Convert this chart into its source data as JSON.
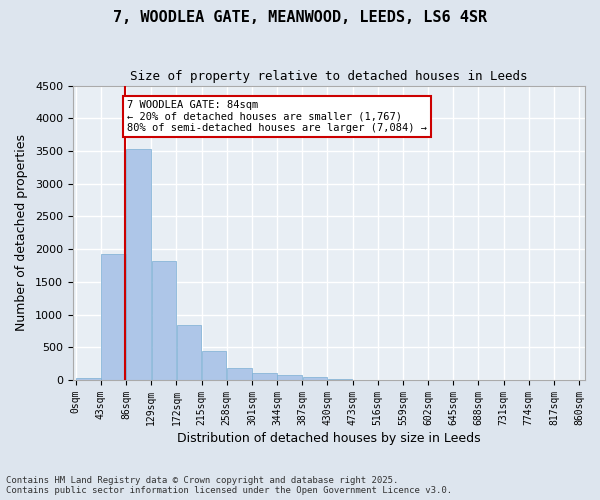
{
  "title": "7, WOODLEA GATE, MEANWOOD, LEEDS, LS6 4SR",
  "subtitle": "Size of property relative to detached houses in Leeds",
  "xlabel": "Distribution of detached houses by size in Leeds",
  "ylabel": "Number of detached properties",
  "bar_color": "#aec6e8",
  "bar_edge_color": "#7bafd4",
  "background_color": "#e8eef4",
  "grid_color": "#ffffff",
  "annotation_box_color": "#cc0000",
  "annotation_line_color": "#cc0000",
  "property_line_x": 84,
  "annotation_title": "7 WOODLEA GATE: 84sqm",
  "annotation_line1": "← 20% of detached houses are smaller (1,767)",
  "annotation_line2": "80% of semi-detached houses are larger (7,084) →",
  "bin_edges": [
    0,
    43,
    86,
    129,
    172,
    215,
    258,
    301,
    344,
    387,
    430,
    473,
    516,
    559,
    602,
    645,
    688,
    731,
    774,
    817,
    860
  ],
  "tick_labels": [
    "0sqm",
    "43sqm",
    "86sqm",
    "129sqm",
    "172sqm",
    "215sqm",
    "258sqm",
    "301sqm",
    "344sqm",
    "387sqm",
    "430sqm",
    "473sqm",
    "516sqm",
    "559sqm",
    "602sqm",
    "645sqm",
    "688sqm",
    "731sqm",
    "774sqm",
    "817sqm",
    "860sqm"
  ],
  "values": [
    30,
    1930,
    3530,
    1820,
    840,
    440,
    180,
    115,
    80,
    45,
    10,
    5,
    3,
    2,
    1,
    1,
    0,
    0,
    0,
    0
  ],
  "ylim": [
    0,
    4500
  ],
  "yticks": [
    0,
    500,
    1000,
    1500,
    2000,
    2500,
    3000,
    3500,
    4000,
    4500
  ],
  "footer_line1": "Contains HM Land Registry data © Crown copyright and database right 2025.",
  "footer_line2": "Contains public sector information licensed under the Open Government Licence v3.0."
}
